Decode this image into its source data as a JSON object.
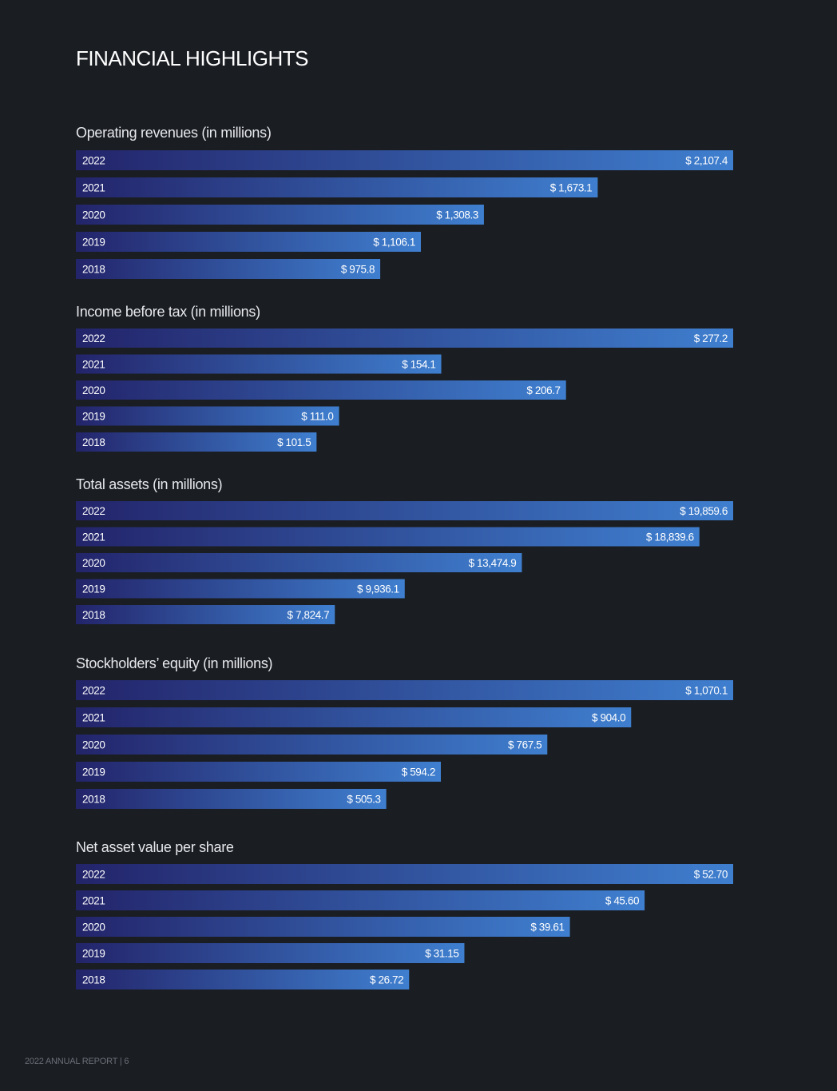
{
  "page": {
    "title": "FINANCIAL HIGHLIGHTS",
    "footer": "2022 ANNUAL REPORT | 6"
  },
  "colors": {
    "background": "#1a1d22",
    "bar_start": "#23246a",
    "bar_end": "#3f7fcf"
  },
  "chart_data": [
    {
      "type": "bar",
      "orientation": "horizontal",
      "title": "Operating revenues (in millions)",
      "categories": [
        "2022",
        "2021",
        "2020",
        "2019",
        "2018"
      ],
      "values": [
        2107.4,
        1673.1,
        1308.3,
        1106.1,
        975.8
      ],
      "value_labels": [
        "$ 2,107.4",
        "$ 1,673.1",
        "$ 1,308.3",
        "$ 1,106.1",
        "$ 975.8"
      ],
      "xlim": [
        0,
        2107.4
      ]
    },
    {
      "type": "bar",
      "orientation": "horizontal",
      "title": "Income before tax (in millions)",
      "categories": [
        "2022",
        "2021",
        "2020",
        "2019",
        "2018"
      ],
      "values": [
        277.2,
        154.1,
        206.7,
        111.0,
        101.5
      ],
      "value_labels": [
        "$ 277.2",
        "$ 154.1",
        "$ 206.7",
        "$ 111.0",
        "$ 101.5"
      ],
      "xlim": [
        0,
        277.2
      ]
    },
    {
      "type": "bar",
      "orientation": "horizontal",
      "title": "Total assets (in millions)",
      "categories": [
        "2022",
        "2021",
        "2020",
        "2019",
        "2018"
      ],
      "values": [
        19859.6,
        18839.6,
        13474.9,
        9936.1,
        7824.7
      ],
      "value_labels": [
        "$ 19,859.6",
        "$ 18,839.6",
        "$ 13,474.9",
        "$ 9,936.1",
        "$ 7,824.7"
      ],
      "xlim": [
        0,
        19859.6
      ]
    },
    {
      "type": "bar",
      "orientation": "horizontal",
      "title": "Stockholders’ equity (in millions)",
      "categories": [
        "2022",
        "2021",
        "2020",
        "2019",
        "2018"
      ],
      "values": [
        1070.1,
        904.0,
        767.5,
        594.2,
        505.3
      ],
      "value_labels": [
        "$ 1,070.1",
        "$ 904.0",
        "$ 767.5",
        "$ 594.2",
        "$ 505.3"
      ],
      "xlim": [
        0,
        1070.1
      ]
    },
    {
      "type": "bar",
      "orientation": "horizontal",
      "title": "Net asset value per share",
      "categories": [
        "2022",
        "2021",
        "2020",
        "2019",
        "2018"
      ],
      "values": [
        52.7,
        45.6,
        39.61,
        31.15,
        26.72
      ],
      "value_labels": [
        "$ 52.70",
        "$ 45.60",
        "$ 39.61",
        "$ 31.15",
        "$ 26.72"
      ],
      "xlim": [
        0,
        52.7
      ]
    }
  ]
}
